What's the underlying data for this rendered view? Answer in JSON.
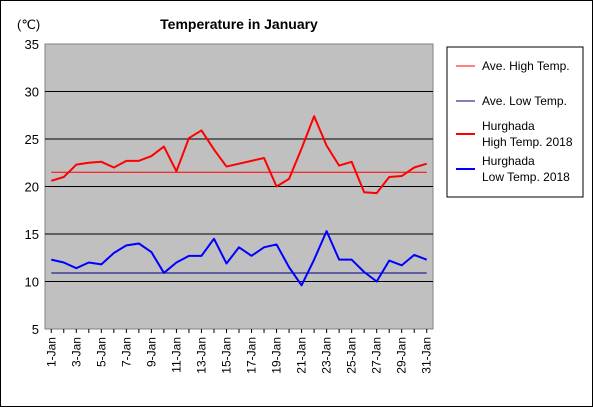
{
  "chart_data": {
    "type": "line",
    "title": "Temperature in January",
    "yunit": "(℃)",
    "ylim": [
      5,
      35
    ],
    "yticks": [
      5,
      10,
      15,
      20,
      25,
      30,
      35
    ],
    "grid": true,
    "legend_position": "right",
    "x": [
      "1-Jan",
      "2-Jan",
      "3-Jan",
      "4-Jan",
      "5-Jan",
      "6-Jan",
      "7-Jan",
      "8-Jan",
      "9-Jan",
      "10-Jan",
      "11-Jan",
      "12-Jan",
      "13-Jan",
      "14-Jan",
      "15-Jan",
      "16-Jan",
      "17-Jan",
      "18-Jan",
      "19-Jan",
      "20-Jan",
      "21-Jan",
      "22-Jan",
      "23-Jan",
      "24-Jan",
      "25-Jan",
      "26-Jan",
      "27-Jan",
      "28-Jan",
      "29-Jan",
      "30-Jan",
      "31-Jan"
    ],
    "xtick_labels": [
      "1-Jan",
      "3-Jan",
      "5-Jan",
      "7-Jan",
      "9-Jan",
      "11-Jan",
      "13-Jan",
      "15-Jan",
      "17-Jan",
      "19-Jan",
      "21-Jan",
      "23-Jan",
      "25-Jan",
      "27-Jan",
      "29-Jan",
      "31-Jan"
    ],
    "series": [
      {
        "name": "Ave. High Temp.",
        "color": "#ff0000",
        "width": 1,
        "values": [
          21.5,
          21.5,
          21.5,
          21.5,
          21.5,
          21.5,
          21.5,
          21.5,
          21.5,
          21.5,
          21.5,
          21.5,
          21.5,
          21.5,
          21.5,
          21.5,
          21.5,
          21.5,
          21.5,
          21.5,
          21.5,
          21.5,
          21.5,
          21.5,
          21.5,
          21.5,
          21.5,
          21.5,
          21.5,
          21.5,
          21.5
        ]
      },
      {
        "name": "Ave. Low Temp.",
        "color": "#000080",
        "width": 1,
        "values": [
          10.9,
          10.9,
          10.9,
          10.9,
          10.9,
          10.9,
          10.9,
          10.9,
          10.9,
          10.9,
          10.9,
          10.9,
          10.9,
          10.9,
          10.9,
          10.9,
          10.9,
          10.9,
          10.9,
          10.9,
          10.9,
          10.9,
          10.9,
          10.9,
          10.9,
          10.9,
          10.9,
          10.9,
          10.9,
          10.9,
          10.9
        ]
      },
      {
        "name": "Hurghada\nHigh Temp. 2018",
        "color": "#ff0000",
        "width": 2,
        "values": [
          20.6,
          21.0,
          22.3,
          22.5,
          22.6,
          22.0,
          22.7,
          22.7,
          23.2,
          24.2,
          21.6,
          25.1,
          25.9,
          23.9,
          22.1,
          22.4,
          22.7,
          23.0,
          20.0,
          20.8,
          24.0,
          27.4,
          24.3,
          22.2,
          22.6,
          19.4,
          19.3,
          21.0,
          21.1,
          22.0,
          22.4
        ]
      },
      {
        "name": "Hurghada\nLow Temp. 2018",
        "color": "#0000ff",
        "width": 2,
        "values": [
          12.3,
          12.0,
          11.4,
          12.0,
          11.8,
          13.0,
          13.8,
          14.0,
          13.1,
          10.9,
          12.0,
          12.7,
          12.7,
          14.5,
          11.9,
          13.6,
          12.7,
          13.6,
          13.9,
          11.5,
          9.6,
          12.3,
          15.3,
          12.3,
          12.3,
          11.0,
          10.0,
          12.2,
          11.7,
          12.8,
          12.3
        ]
      }
    ]
  }
}
